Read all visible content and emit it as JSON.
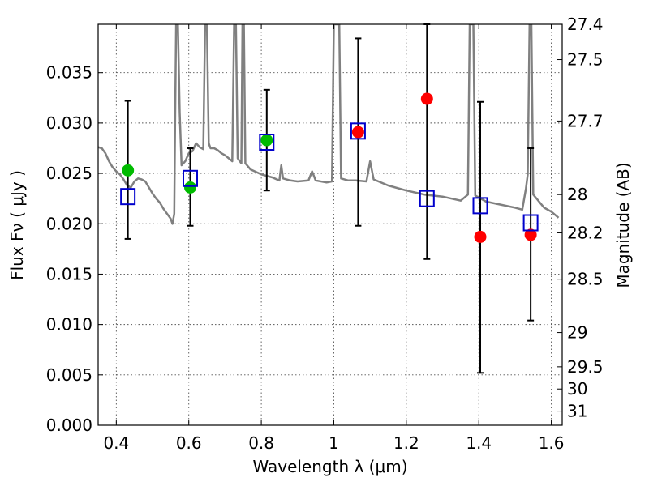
{
  "chart_data": {
    "type": "scatter",
    "xlabel": "Wavelength  λ (μm)",
    "ylabel": "Flux  Fν  ( μJy )",
    "ylabel_right": "Magnitude (AB)",
    "xlim": [
      0.35,
      1.63
    ],
    "ylim": [
      0.0,
      0.0398
    ],
    "x_ticks": [
      0.4,
      0.6,
      0.8,
      1.0,
      1.2,
      1.4,
      1.6
    ],
    "x_tick_labels": [
      "0.4",
      "0.6",
      "0.8",
      "1",
      "1.2",
      "1.4",
      "1.6"
    ],
    "y_ticks": [
      0.0,
      0.005,
      0.01,
      0.015,
      0.02,
      0.025,
      0.03,
      0.035
    ],
    "y_tick_labels": [
      "0.000",
      "0.005",
      "0.010",
      "0.015",
      "0.020",
      "0.025",
      "0.030",
      "0.035"
    ],
    "right_ticks": [
      {
        "flux": 0.0398,
        "label": "27.4"
      },
      {
        "flux": 0.0363,
        "label": "27.5"
      },
      {
        "flux": 0.0302,
        "label": "27.7"
      },
      {
        "flux": 0.0229,
        "label": "28"
      },
      {
        "flux": 0.0191,
        "label": "28.2"
      },
      {
        "flux": 0.0145,
        "label": "28.5"
      },
      {
        "flux": 0.0092,
        "label": "29"
      },
      {
        "flux": 0.0058,
        "label": "29.5"
      },
      {
        "flux": 0.0036,
        "label": "30"
      },
      {
        "flux": 0.0014,
        "label": "31"
      }
    ],
    "grid": true,
    "series": [
      {
        "kind": "line",
        "color": "#808080",
        "points": [
          [
            0.35,
            0.0276
          ],
          [
            0.36,
            0.0275
          ],
          [
            0.37,
            0.027
          ],
          [
            0.38,
            0.0262
          ],
          [
            0.39,
            0.0256
          ],
          [
            0.4,
            0.0252
          ],
          [
            0.41,
            0.0249
          ],
          [
            0.42,
            0.0244
          ],
          [
            0.43,
            0.0238
          ],
          [
            0.44,
            0.0236
          ],
          [
            0.45,
            0.0242
          ],
          [
            0.46,
            0.0245
          ],
          [
            0.47,
            0.0244
          ],
          [
            0.48,
            0.0242
          ],
          [
            0.49,
            0.0236
          ],
          [
            0.5,
            0.023
          ],
          [
            0.51,
            0.0225
          ],
          [
            0.52,
            0.0221
          ],
          [
            0.53,
            0.0215
          ],
          [
            0.54,
            0.021
          ],
          [
            0.55,
            0.0205
          ],
          [
            0.555,
            0.02
          ],
          [
            0.56,
            0.021
          ],
          [
            0.562,
            0.029
          ],
          [
            0.565,
            0.0398
          ],
          [
            0.57,
            0.0398
          ],
          [
            0.575,
            0.031
          ],
          [
            0.58,
            0.0258
          ],
          [
            0.59,
            0.0262
          ],
          [
            0.6,
            0.027
          ],
          [
            0.61,
            0.0272
          ],
          [
            0.62,
            0.028
          ],
          [
            0.63,
            0.0276
          ],
          [
            0.64,
            0.0274
          ],
          [
            0.645,
            0.0398
          ],
          [
            0.65,
            0.0398
          ],
          [
            0.655,
            0.028
          ],
          [
            0.66,
            0.0275
          ],
          [
            0.67,
            0.0275
          ],
          [
            0.68,
            0.0273
          ],
          [
            0.69,
            0.027
          ],
          [
            0.7,
            0.0268
          ],
          [
            0.71,
            0.0265
          ],
          [
            0.72,
            0.0262
          ],
          [
            0.725,
            0.0398
          ],
          [
            0.73,
            0.0398
          ],
          [
            0.735,
            0.0265
          ],
          [
            0.745,
            0.026
          ],
          [
            0.748,
            0.0398
          ],
          [
            0.752,
            0.0398
          ],
          [
            0.756,
            0.026
          ],
          [
            0.77,
            0.0254
          ],
          [
            0.8,
            0.0249
          ],
          [
            0.83,
            0.0246
          ],
          [
            0.85,
            0.0243
          ],
          [
            0.855,
            0.0258
          ],
          [
            0.86,
            0.0245
          ],
          [
            0.88,
            0.0243
          ],
          [
            0.9,
            0.0242
          ],
          [
            0.93,
            0.0243
          ],
          [
            0.94,
            0.0252
          ],
          [
            0.95,
            0.0243
          ],
          [
            0.98,
            0.0241
          ],
          [
            0.995,
            0.0242
          ],
          [
            1.0,
            0.0398
          ],
          [
            1.015,
            0.0398
          ],
          [
            1.02,
            0.0245
          ],
          [
            1.04,
            0.0243
          ],
          [
            1.06,
            0.0243
          ],
          [
            1.09,
            0.0242
          ],
          [
            1.1,
            0.0262
          ],
          [
            1.11,
            0.0244
          ],
          [
            1.15,
            0.0238
          ],
          [
            1.2,
            0.0233
          ],
          [
            1.25,
            0.0229
          ],
          [
            1.3,
            0.0227
          ],
          [
            1.35,
            0.0223
          ],
          [
            1.37,
            0.0229
          ],
          [
            1.375,
            0.0398
          ],
          [
            1.385,
            0.0398
          ],
          [
            1.39,
            0.0228
          ],
          [
            1.42,
            0.0222
          ],
          [
            1.46,
            0.0219
          ],
          [
            1.5,
            0.0216
          ],
          [
            1.52,
            0.0214
          ],
          [
            1.53,
            0.0235
          ],
          [
            1.535,
            0.0249
          ],
          [
            1.54,
            0.0398
          ],
          [
            1.545,
            0.0398
          ],
          [
            1.55,
            0.0229
          ],
          [
            1.58,
            0.0216
          ],
          [
            1.6,
            0.0212
          ],
          [
            1.62,
            0.0206
          ]
        ]
      },
      {
        "kind": "markers",
        "marker": "circle",
        "color": "#00bb00",
        "points": [
          [
            0.432,
            0.0253
          ],
          [
            0.604,
            0.0236
          ],
          [
            0.815,
            0.0283
          ]
        ]
      },
      {
        "kind": "markers",
        "marker": "circle",
        "color": "#ff0000",
        "points": [
          [
            1.067,
            0.0291
          ],
          [
            1.257,
            0.0324
          ],
          [
            1.404,
            0.0187
          ],
          [
            1.543,
            0.0189
          ]
        ]
      },
      {
        "kind": "markers",
        "marker": "square",
        "color": "#0000cc",
        "points": [
          [
            0.432,
            0.0227
          ],
          [
            0.604,
            0.0245
          ],
          [
            0.815,
            0.0281
          ],
          [
            1.067,
            0.0292
          ],
          [
            1.257,
            0.0225
          ],
          [
            1.404,
            0.0218
          ],
          [
            1.543,
            0.0201
          ]
        ]
      },
      {
        "kind": "errorbars",
        "color": "#000000",
        "bars": [
          {
            "x": 0.432,
            "low": 0.0185,
            "high": 0.0322
          },
          {
            "x": 0.604,
            "low": 0.0198,
            "high": 0.0275
          },
          {
            "x": 0.815,
            "low": 0.0233,
            "high": 0.0333
          },
          {
            "x": 1.067,
            "low": 0.0198,
            "high": 0.0384
          },
          {
            "x": 1.257,
            "low": 0.0165,
            "high": 0.0398
          },
          {
            "x": 1.404,
            "low": 0.0052,
            "high": 0.0321
          },
          {
            "x": 1.543,
            "low": 0.0104,
            "high": 0.0275
          }
        ]
      }
    ]
  }
}
